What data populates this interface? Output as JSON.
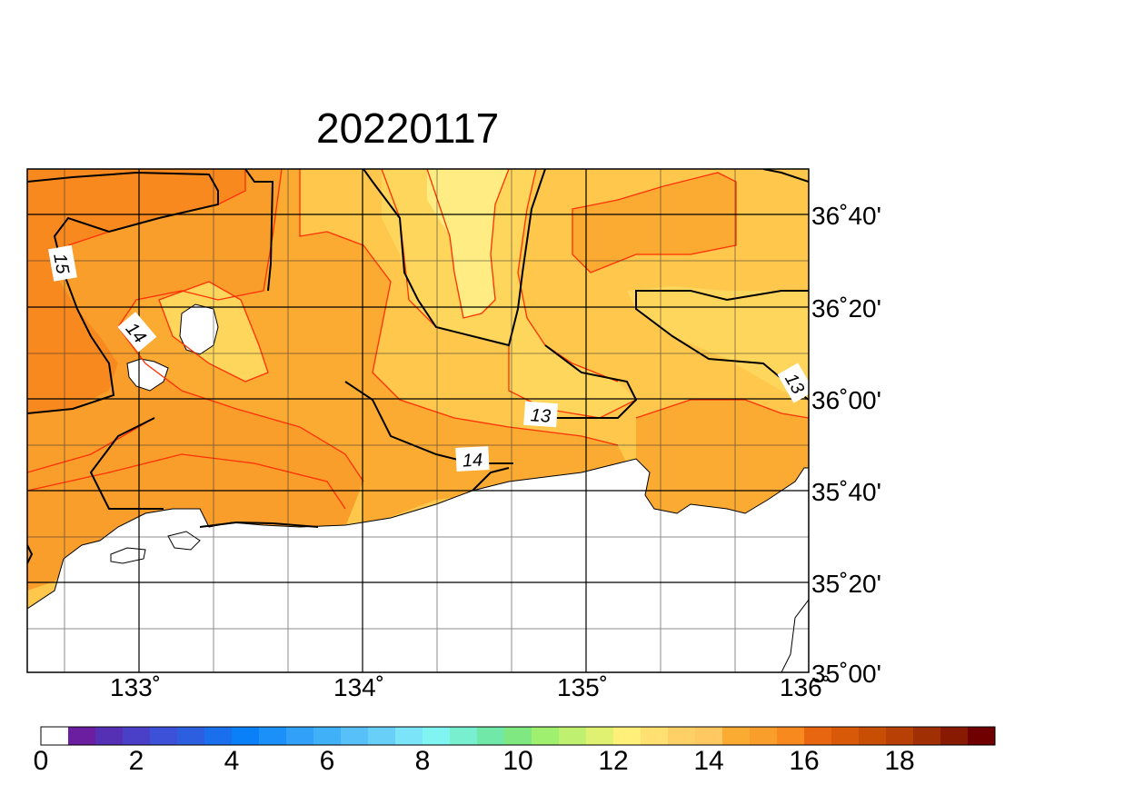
{
  "title": "20220117",
  "map": {
    "lon_range": [
      132.5,
      136.0
    ],
    "lat_range": [
      35.0,
      36.8333
    ],
    "lon_tick_labels": [
      "133˚",
      "134˚",
      "135˚",
      "136˚"
    ],
    "lat_tick_labels": [
      "36˚40'",
      "36˚20'",
      "36˚00'",
      "35˚40'",
      "35˚20'",
      "35˚00'"
    ],
    "contour_labels": [
      "15",
      "14",
      "13",
      "13",
      "14"
    ],
    "colors": {
      "land": "#ffffff",
      "c12_5": "#ffec82",
      "c13": "#ffd65c",
      "c13_5": "#ffc84d",
      "c14": "#fbaa32",
      "c15": "#f99d2b",
      "c16": "#f8891f",
      "contour_major": "#000000",
      "contour_minor": "#ff3000"
    }
  },
  "colorbar": {
    "tick_labels": [
      "0",
      "2",
      "4",
      "6",
      "8",
      "10",
      "12",
      "14",
      "16",
      "18"
    ],
    "colors": [
      "#ffffff",
      "#6c1ea0",
      "#5530b4",
      "#4a40c8",
      "#3c50d8",
      "#2c5fe0",
      "#1a70ec",
      "#0a80f8",
      "#1a90f8",
      "#30a0f8",
      "#40b0f8",
      "#58c0f8",
      "#68d0f8",
      "#7ce4f8",
      "#80f4f0",
      "#78f0d0",
      "#70e8a8",
      "#80e880",
      "#a0f070",
      "#c0f070",
      "#e0f070",
      "#fff07a",
      "#ffe070",
      "#ffd065",
      "#ffc860",
      "#fbaa32",
      "#f99d2b",
      "#f8891f",
      "#e86610",
      "#d85a08",
      "#c84e04",
      "#b84004",
      "#a03004",
      "#881a02",
      "#700000"
    ]
  }
}
